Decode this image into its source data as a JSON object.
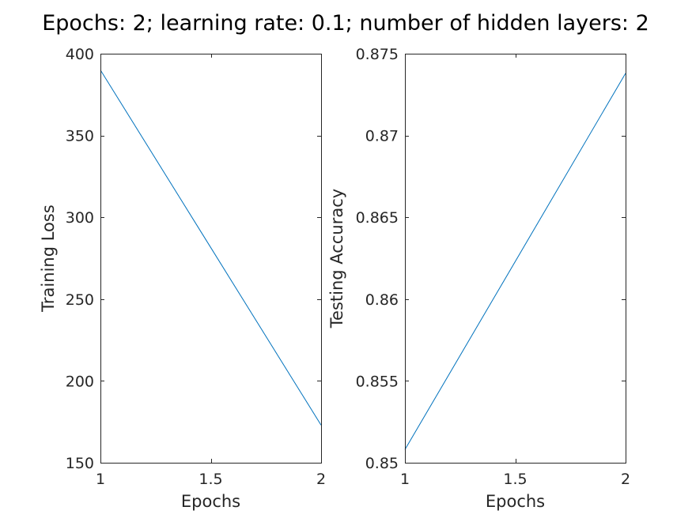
{
  "title": "Epochs: 2; learning rate: 0.1; number of hidden layers: 2",
  "chart_data": [
    {
      "type": "line",
      "xlabel": "Epochs",
      "ylabel": "Training Loss",
      "x": [
        1,
        2
      ],
      "series": [
        {
          "values": [
            390,
            173
          ],
          "color": "#0072BD"
        }
      ],
      "xlim": [
        1,
        2
      ],
      "ylim": [
        150,
        400
      ],
      "xticks": [
        1,
        1.5,
        2
      ],
      "xtick_labels": [
        "1",
        "1.5",
        "2"
      ],
      "yticks": [
        150,
        200,
        250,
        300,
        350,
        400
      ],
      "ytick_labels": [
        "150",
        "200",
        "250",
        "300",
        "350",
        "400"
      ],
      "grid": false,
      "box": true
    },
    {
      "type": "line",
      "xlabel": "Epochs",
      "ylabel": "Testing Accuracy",
      "x": [
        1,
        2
      ],
      "series": [
        {
          "values": [
            0.8508,
            0.8738
          ],
          "color": "#0072BD"
        }
      ],
      "xlim": [
        1,
        2
      ],
      "ylim": [
        0.85,
        0.875
      ],
      "xticks": [
        1,
        1.5,
        2
      ],
      "xtick_labels": [
        "1",
        "1.5",
        "2"
      ],
      "yticks": [
        0.85,
        0.855,
        0.86,
        0.865,
        0.87,
        0.875
      ],
      "ytick_labels": [
        "0.85",
        "0.855",
        "0.86",
        "0.865",
        "0.87",
        "0.875"
      ],
      "grid": false,
      "box": true
    }
  ]
}
